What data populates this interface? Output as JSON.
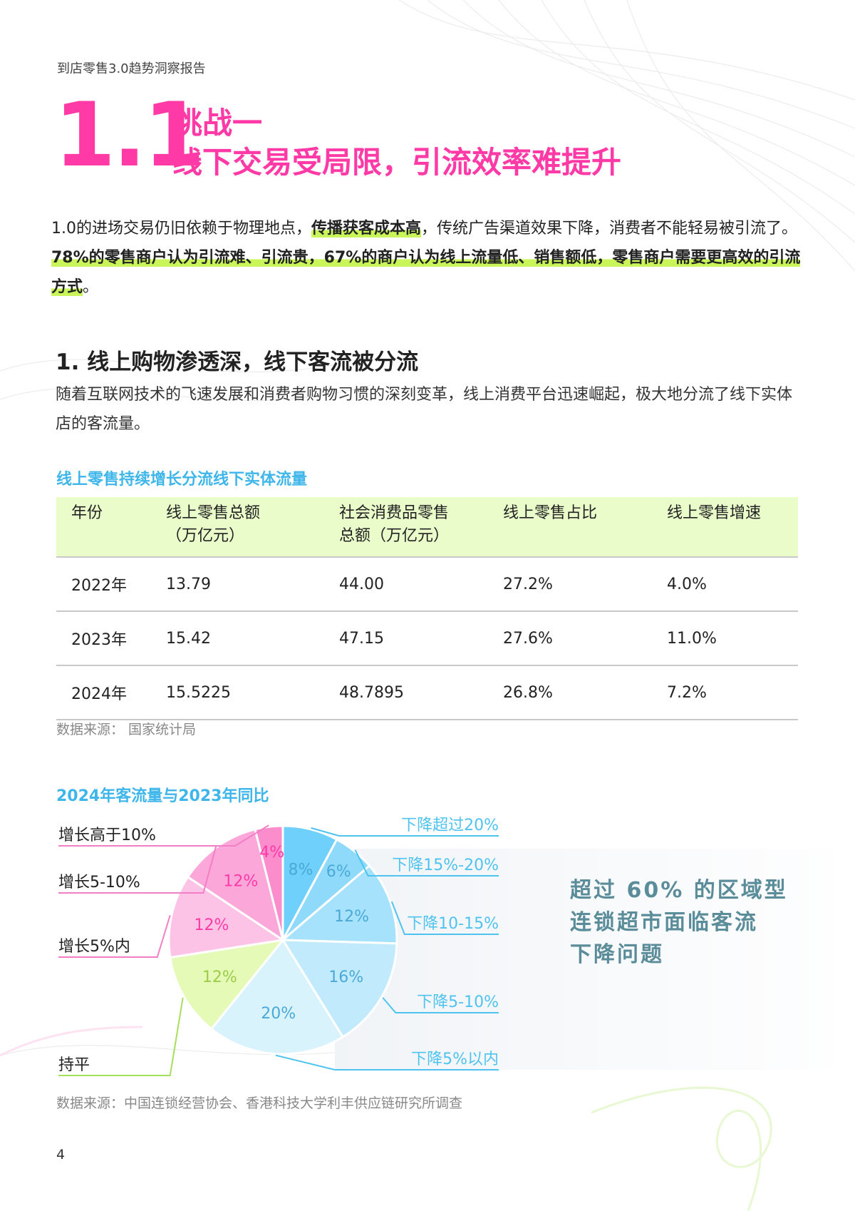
{
  "header": {
    "report_title": "到店零售3.0趋势洞察报告"
  },
  "section": {
    "number": "1.1",
    "title_line1": "挑战一",
    "title_line2": "线下交易受局限，引流效率难提升"
  },
  "intro": {
    "p1": "1.0的进场交易仍旧依赖于物理地点，",
    "h1": "传播获客成本高",
    "p2": "，传统广告渠道效果下降，消费者不能轻易被引流了。",
    "h2": "78%的零售商户认为引流难、引流贵，67%的商户认为线上流量低、销售额低，零售商户需要更高效的引流方式",
    "p3": "。"
  },
  "subsection": {
    "title": "1. 线上购物渗透深，线下客流被分流",
    "body": "随着互联网技术的飞速发展和消费者购物习惯的深刻变革，线上消费平台迅速崛起，极大地分流了线下实体店的客流量。"
  },
  "table": {
    "title": "线上零售持续增长分流线下实体流量",
    "headers": [
      "年份",
      "线上零售总额\n（万亿元）",
      "社会消费品零售\n总额（万亿元）",
      "线上零售占比",
      "线上零售增速"
    ],
    "rows": [
      [
        "2022年",
        "13.79",
        "44.00",
        "27.2%",
        "4.0%"
      ],
      [
        "2023年",
        "15.42",
        "47.15",
        "27.6%",
        "11.0%"
      ],
      [
        "2024年",
        "15.5225",
        "48.7895",
        "26.8%",
        "7.2%"
      ]
    ],
    "source": "数据来源：  国家统计局"
  },
  "pie": {
    "title": "2024年客流量与2023年同比",
    "source": "数据来源：中国连锁经营协会、香港科技大学利丰供应链研究所调查",
    "callout": [
      "超过 60% 的区域型",
      "连锁超市面临客流",
      "下降问题"
    ]
  },
  "chart_data": {
    "type": "pie",
    "title": "2024年客流量与2023年同比",
    "slices": [
      {
        "label": "下降超过20%",
        "value": 8,
        "value_label": "8%",
        "color": "#6fd0fb"
      },
      {
        "label": "下降15%-20%",
        "value": 6,
        "value_label": "6%",
        "color": "#8fdafb"
      },
      {
        "label": "下降10-15%",
        "value": 12,
        "value_label": "12%",
        "color": "#a6e2fb"
      },
      {
        "label": "下降5-10%",
        "value": 16,
        "value_label": "16%",
        "color": "#c1ebfc"
      },
      {
        "label": "下降5%以内",
        "value": 20,
        "value_label": "20%",
        "color": "#d9f3fd"
      },
      {
        "label": "持平",
        "value": 12,
        "value_label": "12%",
        "color": "#e4fab6"
      },
      {
        "label": "增长5%内",
        "value": 12,
        "value_label": "12%",
        "color": "#fdc3e6"
      },
      {
        "label": "增长5-10%",
        "value": 12,
        "value_label": "12%",
        "color": "#fca7da"
      },
      {
        "label": "增长高于10%",
        "value": 4,
        "value_label": "4%",
        "color": "#fb8dcd"
      }
    ],
    "colors": {
      "decline_line": "#4fc3f0",
      "flat_line": "#a5e05a",
      "growth_line": "#f27fc6",
      "label_pink": "#ff3aa6",
      "label_blue": "#4aa9d6"
    }
  },
  "page_number": "4"
}
